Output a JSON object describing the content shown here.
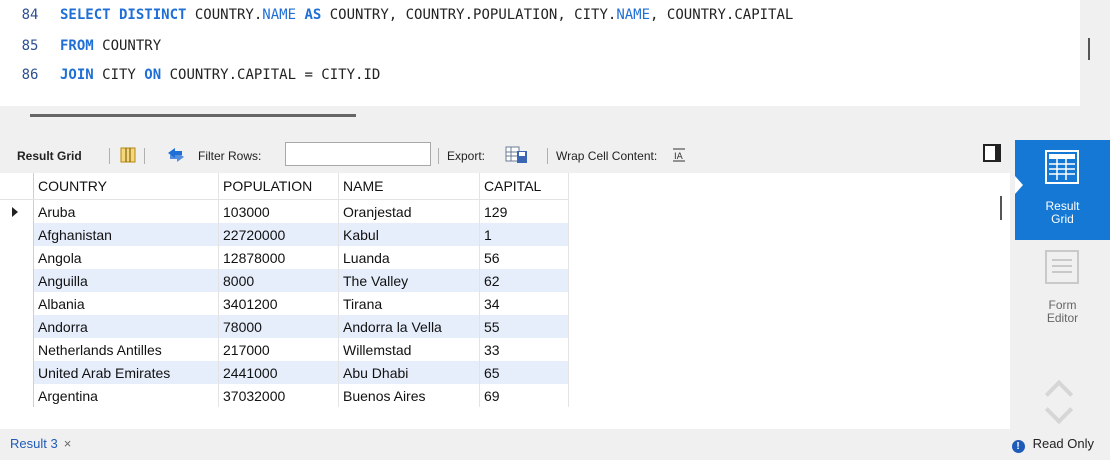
{
  "editor": {
    "lines": [
      {
        "num": "84",
        "parts": [
          {
            "t": "SELECT DISTINCT ",
            "k": "kw"
          },
          {
            "t": "COUNTRY.",
            "k": "code"
          },
          {
            "t": "NAME",
            "k": "kw2"
          },
          {
            "t": " ",
            "k": "code"
          },
          {
            "t": "AS",
            "k": "kw"
          },
          {
            "t": " COUNTRY, COUNTRY.POPULATION, CITY.",
            "k": "code"
          },
          {
            "t": "NAME",
            "k": "kw2"
          },
          {
            "t": ", COUNTRY.CAPITAL",
            "k": "code"
          }
        ]
      },
      {
        "num": "85",
        "parts": [
          {
            "t": "FROM",
            "k": "kw"
          },
          {
            "t": " COUNTRY",
            "k": "code"
          }
        ]
      },
      {
        "num": "86",
        "parts": [
          {
            "t": "JOIN",
            "k": "kw"
          },
          {
            "t": " CITY ",
            "k": "code"
          },
          {
            "t": "ON",
            "k": "kw"
          },
          {
            "t": " COUNTRY.CAPITAL = CITY.ID",
            "k": "code"
          }
        ]
      }
    ]
  },
  "toolbar": {
    "result_grid_label": "Result Grid",
    "filter_label": "Filter Rows:",
    "filter_value": "",
    "export_label": "Export:",
    "wrap_label": "Wrap Cell Content:"
  },
  "grid": {
    "columns": [
      "COUNTRY",
      "POPULATION",
      "NAME",
      "CAPITAL"
    ],
    "rows": [
      [
        "Aruba",
        "103000",
        "Oranjestad",
        "129"
      ],
      [
        "Afghanistan",
        "22720000",
        "Kabul",
        "1"
      ],
      [
        "Angola",
        "12878000",
        "Luanda",
        "56"
      ],
      [
        "Anguilla",
        "8000",
        "The Valley",
        "62"
      ],
      [
        "Albania",
        "3401200",
        "Tirana",
        "34"
      ],
      [
        "Andorra",
        "78000",
        "Andorra la Vella",
        "55"
      ],
      [
        "Netherlands Antilles",
        "217000",
        "Willemstad",
        "33"
      ],
      [
        "United Arab Emirates",
        "2441000",
        "Abu Dhabi",
        "65"
      ],
      [
        "Argentina",
        "37032000",
        "Buenos Aires",
        "69"
      ]
    ]
  },
  "right_panel": {
    "result_grid_line1": "Result",
    "result_grid_line2": "Grid",
    "form_editor_line1": "Form",
    "form_editor_line2": "Editor"
  },
  "status": {
    "tab_label": "Result 3",
    "close_glyph": "×",
    "info_glyph": "!",
    "read_only": "Read Only"
  },
  "colors": {
    "accent": "#1478d4",
    "keyword": "#1f6fd6",
    "row_alt": "#e6eefb"
  }
}
